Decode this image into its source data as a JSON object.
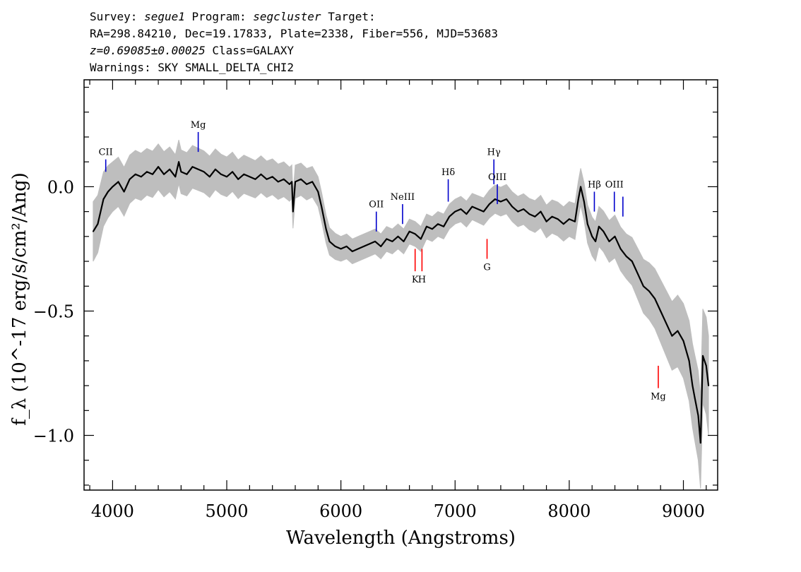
{
  "header": {
    "survey_label": "Survey:",
    "survey": "segue1",
    "program_label": "Program:",
    "program": "segcluster",
    "target_label": "Target:",
    "coords": "RA=298.84210, Dec=19.17833, Plate=2338, Fiber=556, MJD=53683",
    "redshift": "z=0.69085±0.00025",
    "class": "Class=GALAXY",
    "warnings": "Warnings: SKY SMALL_DELTA_CHI2"
  },
  "chart_data": {
    "type": "line",
    "xlabel": "Wavelength (Angstroms)",
    "ylabel": "f_λ (10^-17 erg/s/cm²/Ang)",
    "xlim": [
      3750,
      9300
    ],
    "ylim": [
      -1.22,
      0.43
    ],
    "xticks": [
      4000,
      5000,
      6000,
      7000,
      8000,
      9000
    ],
    "yticks": [
      0.0,
      -0.5,
      -1.0
    ],
    "xtick_labels": [
      "4000",
      "5000",
      "6000",
      "7000",
      "8000",
      "9000"
    ],
    "ytick_labels": [
      "0.0",
      "−0.5",
      "−1.0"
    ],
    "series": [
      {
        "role": "flux",
        "color": "#000000",
        "x": [
          3830,
          3870,
          3920,
          3960,
          4000,
          4050,
          4100,
          4150,
          4200,
          4250,
          4300,
          4350,
          4400,
          4450,
          4500,
          4550,
          4580,
          4600,
          4650,
          4700,
          4750,
          4800,
          4850,
          4900,
          4950,
          5000,
          5050,
          5100,
          5150,
          5200,
          5250,
          5300,
          5350,
          5400,
          5450,
          5500,
          5550,
          5570,
          5580,
          5600,
          5650,
          5700,
          5750,
          5800,
          5830,
          5870,
          5900,
          5950,
          6000,
          6050,
          6100,
          6150,
          6200,
          6250,
          6300,
          6350,
          6400,
          6450,
          6500,
          6550,
          6600,
          6650,
          6700,
          6750,
          6800,
          6850,
          6900,
          6950,
          7000,
          7050,
          7100,
          7150,
          7200,
          7250,
          7300,
          7350,
          7400,
          7450,
          7500,
          7550,
          7600,
          7650,
          7700,
          7750,
          7800,
          7850,
          7900,
          7950,
          8000,
          8050,
          8080,
          8100,
          8130,
          8160,
          8200,
          8230,
          8260,
          8300,
          8350,
          8400,
          8450,
          8500,
          8550,
          8600,
          8650,
          8700,
          8750,
          8800,
          8850,
          8900,
          8950,
          9000,
          9050,
          9080,
          9100,
          9130,
          9150,
          9170,
          9200,
          9220
        ],
        "y": [
          -0.18,
          -0.15,
          -0.05,
          -0.02,
          0.0,
          0.02,
          -0.02,
          0.03,
          0.05,
          0.04,
          0.06,
          0.05,
          0.08,
          0.05,
          0.07,
          0.04,
          0.1,
          0.06,
          0.05,
          0.08,
          0.07,
          0.06,
          0.04,
          0.07,
          0.05,
          0.04,
          0.06,
          0.03,
          0.05,
          0.04,
          0.03,
          0.05,
          0.03,
          0.04,
          0.02,
          0.03,
          0.01,
          0.02,
          -0.1,
          0.02,
          0.03,
          0.01,
          0.02,
          -0.02,
          -0.08,
          -0.17,
          -0.22,
          -0.24,
          -0.25,
          -0.24,
          -0.26,
          -0.25,
          -0.24,
          -0.23,
          -0.22,
          -0.24,
          -0.21,
          -0.22,
          -0.2,
          -0.22,
          -0.18,
          -0.19,
          -0.21,
          -0.16,
          -0.17,
          -0.15,
          -0.16,
          -0.12,
          -0.1,
          -0.09,
          -0.11,
          -0.08,
          -0.09,
          -0.1,
          -0.07,
          -0.05,
          -0.06,
          -0.05,
          -0.08,
          -0.1,
          -0.09,
          -0.11,
          -0.12,
          -0.1,
          -0.14,
          -0.12,
          -0.13,
          -0.15,
          -0.13,
          -0.14,
          -0.05,
          0.0,
          -0.06,
          -0.15,
          -0.2,
          -0.22,
          -0.16,
          -0.18,
          -0.22,
          -0.2,
          -0.25,
          -0.28,
          -0.3,
          -0.35,
          -0.4,
          -0.42,
          -0.45,
          -0.5,
          -0.55,
          -0.6,
          -0.58,
          -0.62,
          -0.7,
          -0.8,
          -0.85,
          -0.92,
          -1.03,
          -0.68,
          -0.72,
          -0.8
        ]
      },
      {
        "role": "error-envelope",
        "color": "#bebebe",
        "x": [
          3830,
          4000,
          4500,
          5000,
          5500,
          5800,
          6000,
          6500,
          7000,
          7500,
          8000,
          8500,
          9000,
          9220
        ],
        "y": [
          0.12,
          0.1,
          0.09,
          0.08,
          0.07,
          0.06,
          0.05,
          0.05,
          0.05,
          0.06,
          0.07,
          0.09,
          0.15,
          0.2
        ]
      }
    ],
    "lines": [
      {
        "label": "CII",
        "x": 3940,
        "y_bottom": 0.06,
        "y_top": 0.11,
        "kind": "emission",
        "label_pos": "top"
      },
      {
        "label": "Mg",
        "x": 4750,
        "y_bottom": 0.14,
        "y_top": 0.22,
        "kind": "emission",
        "label_pos": "top"
      },
      {
        "label": "OII",
        "x": 6310,
        "y_bottom": -0.18,
        "y_top": -0.1,
        "kind": "emission",
        "label_pos": "top"
      },
      {
        "label": "NeIII",
        "x": 6540,
        "y_bottom": -0.15,
        "y_top": -0.07,
        "kind": "emission",
        "label_pos": "top"
      },
      {
        "label": "Hδ",
        "x": 6940,
        "y_bottom": -0.06,
        "y_top": 0.03,
        "kind": "emission",
        "label_pos": "top"
      },
      {
        "label": "Hγ",
        "x": 7340,
        "y_bottom": 0.01,
        "y_top": 0.11,
        "kind": "emission",
        "label_pos": "top"
      },
      {
        "label": "OIII",
        "x": 7370,
        "y_bottom": -0.07,
        "y_top": 0.01,
        "kind": "emission",
        "label_pos": "top"
      },
      {
        "label": "Hβ",
        "x": 8220,
        "y_bottom": -0.1,
        "y_top": -0.02,
        "kind": "emission",
        "label_pos": "top"
      },
      {
        "label": "OIII",
        "x": 8395,
        "y_bottom": -0.1,
        "y_top": -0.02,
        "kind": "emission",
        "label_pos": "top"
      },
      {
        "label": "",
        "x": 8470,
        "y_bottom": -0.12,
        "y_top": -0.04,
        "kind": "emission",
        "label_pos": "top"
      },
      {
        "label": "K",
        "x": 6650,
        "y_bottom": -0.34,
        "y_top": -0.25,
        "kind": "absorption",
        "label_pos": "bottom"
      },
      {
        "label": "H",
        "x": 6710,
        "y_bottom": -0.34,
        "y_top": -0.25,
        "kind": "absorption",
        "label_pos": "bottom"
      },
      {
        "label": "G",
        "x": 7280,
        "y_bottom": -0.29,
        "y_top": -0.21,
        "kind": "absorption",
        "label_pos": "bottom"
      },
      {
        "label": "Mg",
        "x": 8780,
        "y_bottom": -0.81,
        "y_top": -0.72,
        "kind": "absorption",
        "label_pos": "bottom"
      }
    ],
    "colors": {
      "emission": "#0000cc",
      "absorption": "#ff0000",
      "flux": "#000000",
      "error": "#bebebe"
    }
  }
}
